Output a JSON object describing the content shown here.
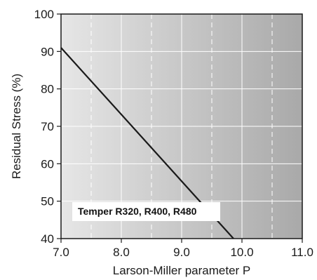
{
  "chart_data": {
    "type": "line",
    "title": "",
    "xlabel": "Larson-Miller parameter P",
    "ylabel": "Residual Stress (%)",
    "xlim": [
      7.0,
      11.0
    ],
    "ylim": [
      40,
      100
    ],
    "x_ticks": [
      7.0,
      8.0,
      9.0,
      10.0,
      11.0
    ],
    "x_tick_labels": [
      "7.0",
      "8.0",
      "9.0",
      "10.0",
      "11.0"
    ],
    "y_ticks": [
      40,
      50,
      60,
      70,
      80,
      90,
      100
    ],
    "y_tick_labels": [
      "40",
      "50",
      "60",
      "70",
      "80",
      "90",
      "100"
    ],
    "x_minor_dashed_gridlines": [
      7.5,
      8.5,
      9.5,
      10.5
    ],
    "grid": true,
    "legend_placement": "bottom-left",
    "series": [
      {
        "name": "Temper R320, R400, R480",
        "x": [
          7.0,
          9.86
        ],
        "y": [
          91,
          40
        ],
        "color": "#1a1a1a"
      }
    ],
    "colors": {
      "background_gradient_start": "#e6e6e6",
      "background_gradient_end": "#a9a9a9",
      "gridline": "#ffffff",
      "frame": "#1a1a1a"
    }
  }
}
